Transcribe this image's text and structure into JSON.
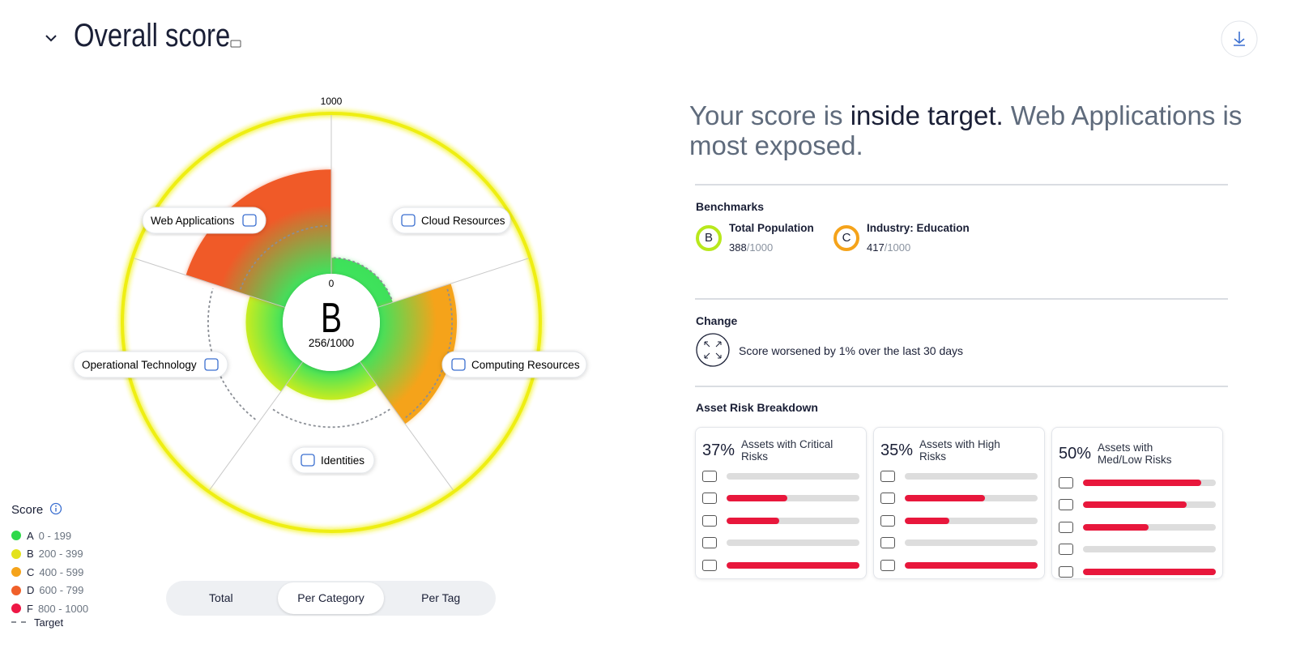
{
  "header": {
    "title": "Overall score"
  },
  "chart_data": {
    "type": "polar",
    "categories": [
      "Cloud Resources",
      "Computing Resources",
      "Identities",
      "Operational Technology",
      "Web Applications"
    ],
    "values": [
      100,
      480,
      180,
      230,
      650
    ],
    "colors": [
      "#3ee05a",
      "#f5a31a",
      "#c8ec20",
      "#c8ec20",
      "#f05a28"
    ],
    "target": [
      100,
      450,
      350,
      465,
      300
    ],
    "rlim": [
      0,
      1000
    ],
    "rticks": [
      0,
      1000
    ],
    "center": {
      "grade": "B",
      "label": "256/1000"
    }
  },
  "legend": {
    "title": "Score",
    "items": [
      {
        "grade": "A",
        "range": "0 - 199",
        "color": "#2fd84a"
      },
      {
        "grade": "B",
        "range": "200 - 399",
        "color": "#e3e21c"
      },
      {
        "grade": "C",
        "range": "400 - 599",
        "color": "#f5a31a"
      },
      {
        "grade": "D",
        "range": "600 - 799",
        "color": "#f0602a"
      },
      {
        "grade": "F",
        "range": "800 - 1000",
        "color": "#ee1745"
      }
    ],
    "target": "Target"
  },
  "toggle": {
    "options": [
      "Total",
      "Per Category",
      "Per Tag"
    ],
    "active": 1
  },
  "summary": [
    {
      "text": "Your score is ",
      "strong": false
    },
    {
      "text": "inside target.",
      "strong": true
    },
    {
      "text": " Web Applications is most exposed.",
      "strong": false
    }
  ],
  "benchmarks": {
    "title": "Benchmarks",
    "items": [
      {
        "grade": "B",
        "name": "Total Population",
        "value": "388",
        "max": "/1000",
        "color": "#b8e81c"
      },
      {
        "grade": "C",
        "name": "Industry: Education",
        "value": "417",
        "max": "/1000",
        "color": "#f5a31a"
      }
    ]
  },
  "change": {
    "title": "Change",
    "text": "Score worsened by 1% over the last 30 days"
  },
  "asset_risk": {
    "title": "Asset Risk Breakdown",
    "bar_lim": [
      0,
      100
    ],
    "cards": [
      {
        "percent": "37%",
        "label": "Assets with Critical Risks",
        "bars": [
          0,
          45,
          39,
          0,
          100
        ]
      },
      {
        "percent": "35%",
        "label": "Assets with High Risks",
        "bars": [
          0,
          60,
          33,
          0,
          100
        ]
      },
      {
        "percent": "50%",
        "label": "Assets with Med/Low Risks",
        "bars": [
          88,
          77,
          49,
          0,
          100
        ]
      }
    ]
  }
}
